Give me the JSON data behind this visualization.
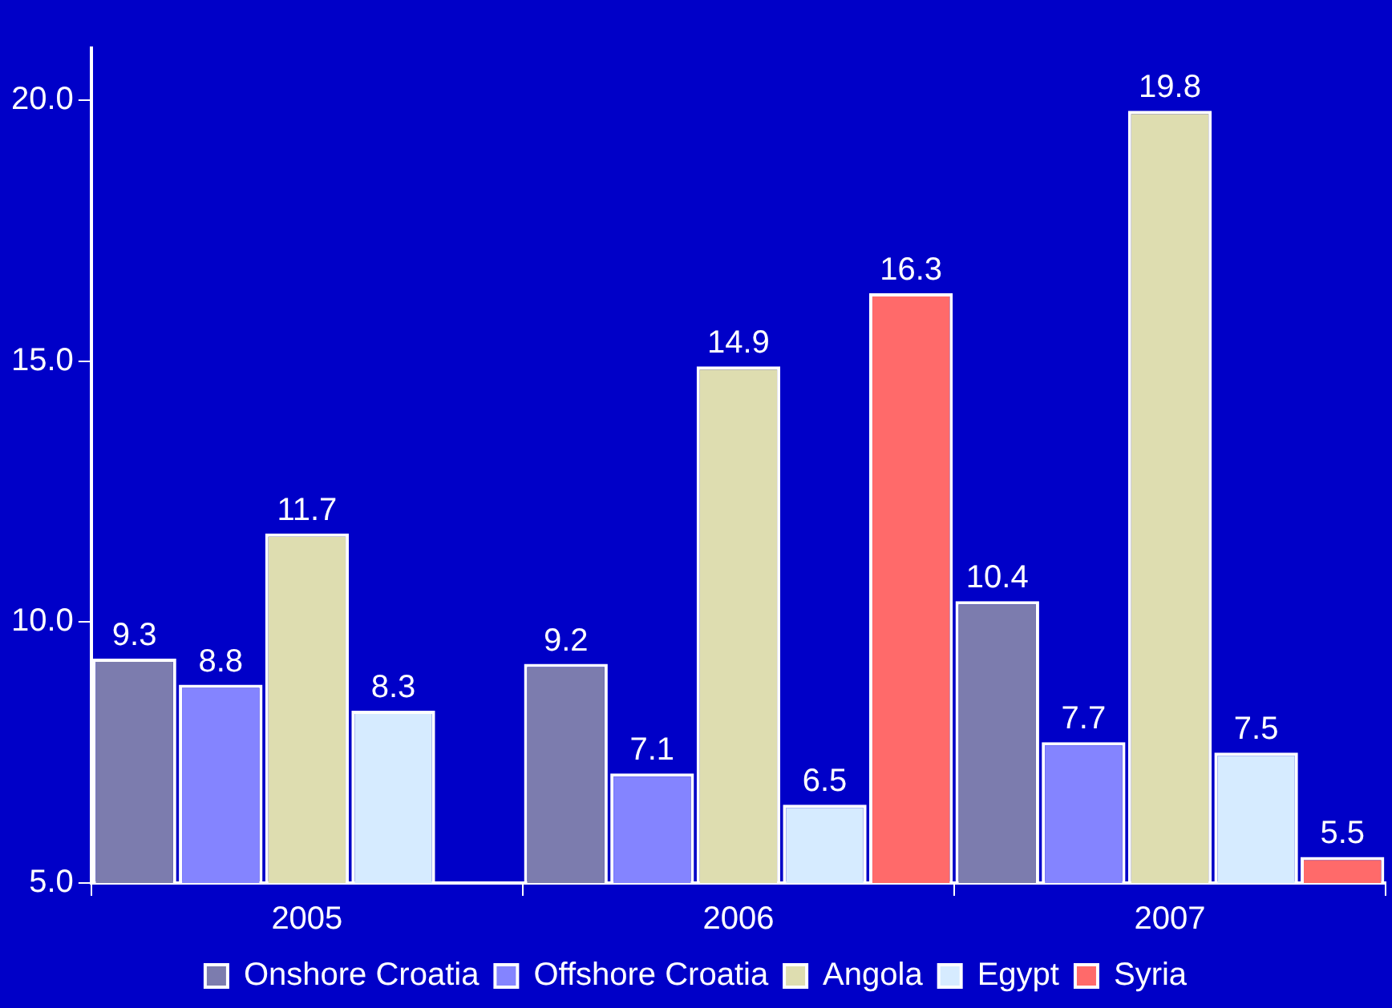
{
  "chart_data": {
    "type": "bar",
    "categories": [
      "2005",
      "2006",
      "2007"
    ],
    "series": [
      {
        "name": "Onshore Croatia",
        "color": "#7c7cae",
        "values": [
          9.3,
          9.2,
          10.4
        ]
      },
      {
        "name": "Offshore Croatia",
        "color": "#8484ff",
        "values": [
          8.8,
          7.1,
          7.7
        ]
      },
      {
        "name": "Angola",
        "color": "#deddb0",
        "values": [
          11.7,
          14.9,
          19.8
        ]
      },
      {
        "name": "Egypt",
        "color": "#d6ebff",
        "values": [
          8.3,
          6.5,
          7.5
        ]
      },
      {
        "name": "Syria",
        "color": "#ff6a6a",
        "values": [
          null,
          16.3,
          5.5
        ]
      }
    ],
    "ylim": [
      5,
      21
    ],
    "yticks": [
      {
        "value": 5,
        "label": "5.0"
      },
      {
        "value": 10,
        "label": "10.0"
      },
      {
        "value": 15,
        "label": "15.0"
      },
      {
        "value": 20,
        "label": "20.0"
      }
    ],
    "data_labels": true,
    "legend": "bottom",
    "grid": false
  }
}
